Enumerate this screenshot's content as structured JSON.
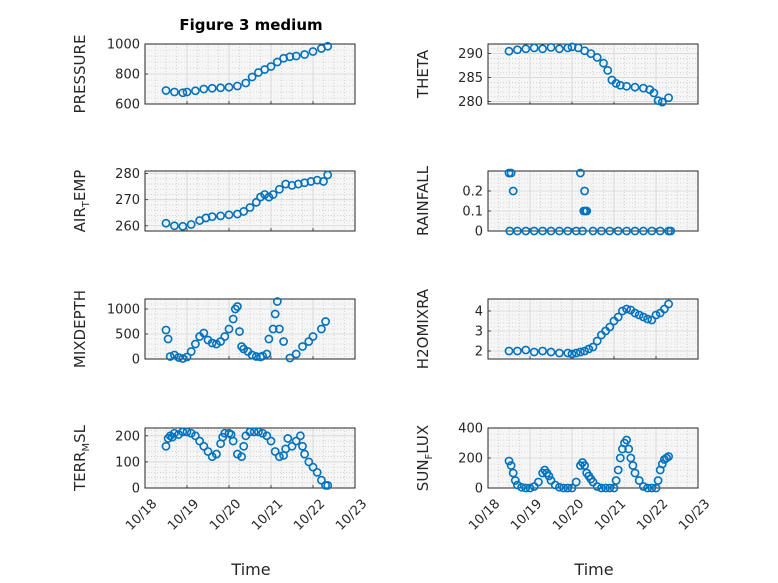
{
  "figure": {
    "title": "Figure 3 medium",
    "marker_color": "#0072bd",
    "x_range": [
      18,
      23
    ],
    "x_ticks": [
      18,
      19,
      20,
      21,
      22,
      23
    ],
    "x_tick_labels": [
      "10/18",
      "10/19",
      "10/20",
      "10/21",
      "10/22",
      "10/23"
    ],
    "x_label": "Time"
  },
  "chart_data": [
    {
      "type": "scatter",
      "name": "pressure",
      "ylabel": "PRESSURE",
      "ylim": [
        600,
        1000
      ],
      "yticks": [
        600,
        800,
        1000
      ],
      "yticklabels": [
        "600",
        "800",
        "1000"
      ],
      "x_labels": false,
      "title": "Figure 3 medium",
      "x": [
        18.5,
        18.7,
        18.9,
        19.0,
        19.2,
        19.4,
        19.6,
        19.8,
        20.0,
        20.2,
        20.4,
        20.55,
        20.7,
        20.85,
        21.0,
        21.15,
        21.3,
        21.45,
        21.6,
        21.8,
        22.0,
        22.2,
        22.35
      ],
      "y": [
        690,
        680,
        675,
        680,
        688,
        700,
        705,
        708,
        712,
        720,
        740,
        780,
        810,
        830,
        850,
        880,
        905,
        915,
        920,
        930,
        950,
        970,
        985
      ]
    },
    {
      "type": "scatter",
      "name": "theta",
      "ylabel": "THETA",
      "ylim": [
        279.5,
        292
      ],
      "yticks": [
        280,
        285,
        290
      ],
      "yticklabels": [
        "280",
        "285",
        "290"
      ],
      "x_labels": false,
      "x": [
        18.5,
        18.7,
        18.9,
        19.1,
        19.3,
        19.5,
        19.7,
        19.9,
        20.0,
        20.15,
        20.3,
        20.45,
        20.6,
        20.75,
        20.85,
        20.95,
        21.05,
        21.15,
        21.3,
        21.5,
        21.7,
        21.85,
        21.95,
        22.05,
        22.15,
        22.3
      ],
      "y": [
        290.5,
        290.8,
        291.0,
        291.2,
        291.0,
        291.3,
        291.0,
        291.2,
        291.4,
        291.2,
        290.6,
        290.0,
        289.2,
        288.0,
        286.5,
        284.5,
        283.8,
        283.4,
        283.2,
        283.0,
        282.8,
        282.5,
        281.8,
        280.2,
        279.9,
        280.8
      ]
    },
    {
      "type": "scatter",
      "name": "air_temp",
      "ylabel": "AIR",
      "ylabel_sub": "T",
      "ylabel_suffix": "EMP",
      "ylim": [
        258,
        281
      ],
      "yticks": [
        260,
        270,
        280
      ],
      "yticklabels": [
        "260",
        "270",
        "280"
      ],
      "x_labels": false,
      "x": [
        18.5,
        18.7,
        18.9,
        19.1,
        19.3,
        19.45,
        19.6,
        19.8,
        20.0,
        20.2,
        20.35,
        20.5,
        20.65,
        20.75,
        20.85,
        20.95,
        21.05,
        21.2,
        21.35,
        21.5,
        21.65,
        21.8,
        21.95,
        22.1,
        22.25,
        22.35
      ],
      "y": [
        261,
        260,
        259.8,
        260.5,
        262,
        263,
        263.5,
        263.8,
        264.2,
        264.5,
        265.5,
        267,
        269,
        271,
        272,
        271,
        272,
        274,
        276,
        275.5,
        276,
        276.5,
        277,
        277.5,
        277,
        279.5
      ]
    },
    {
      "type": "scatter",
      "name": "rainfall",
      "ylabel": "RAINFALL",
      "ylim": [
        0,
        0.3
      ],
      "yticks": [
        0,
        0.1,
        0.2
      ],
      "yticklabels": [
        "0",
        "0.1",
        "0.2"
      ],
      "x_labels": false,
      "x": [
        18.5,
        18.55,
        18.6,
        18.52,
        18.7,
        18.9,
        19.1,
        19.3,
        19.5,
        19.7,
        19.9,
        20.1,
        20.2,
        20.25,
        20.28,
        20.3,
        20.32,
        20.35,
        20.5,
        20.7,
        20.9,
        21.1,
        21.3,
        21.5,
        21.7,
        21.9,
        22.1,
        22.3,
        22.35
      ],
      "y": [
        0.29,
        0.29,
        0.2,
        0,
        0,
        0,
        0,
        0,
        0,
        0,
        0,
        0,
        0.29,
        0,
        0.1,
        0.2,
        0.1,
        0.1,
        0,
        0,
        0,
        0,
        0,
        0,
        0,
        0,
        0,
        0,
        0
      ]
    },
    {
      "type": "scatter",
      "name": "mixdepth",
      "ylabel": "MIXDEPTH",
      "ylim": [
        0,
        1200
      ],
      "yticks": [
        0,
        500,
        1000
      ],
      "yticklabels": [
        "0",
        "500",
        "1000"
      ],
      "x_labels": false,
      "x": [
        18.5,
        18.55,
        18.6,
        18.7,
        18.8,
        18.9,
        19.0,
        19.1,
        19.2,
        19.3,
        19.4,
        19.5,
        19.6,
        19.7,
        19.8,
        19.9,
        20.0,
        20.1,
        20.15,
        20.2,
        20.25,
        20.3,
        20.35,
        20.45,
        20.55,
        20.65,
        20.75,
        20.8,
        20.9,
        20.95,
        21.05,
        21.1,
        21.15,
        21.2,
        21.3,
        21.45,
        21.6,
        21.75,
        21.9,
        22.0,
        22.2,
        22.3
      ],
      "y": [
        580,
        400,
        50,
        80,
        30,
        10,
        40,
        150,
        300,
        450,
        520,
        380,
        320,
        300,
        350,
        450,
        600,
        800,
        1000,
        1050,
        550,
        250,
        200,
        150,
        80,
        50,
        40,
        60,
        100,
        400,
        600,
        900,
        1150,
        600,
        350,
        20,
        100,
        250,
        350,
        450,
        600,
        750
      ]
    },
    {
      "type": "scatter",
      "name": "h2omixra",
      "ylabel": "H2OMIXRA",
      "ylim": [
        1.6,
        4.6
      ],
      "yticks": [
        2,
        3,
        4
      ],
      "yticklabels": [
        "2",
        "3",
        "4"
      ],
      "x_labels": false,
      "x": [
        18.5,
        18.7,
        18.9,
        19.1,
        19.3,
        19.5,
        19.7,
        19.9,
        20.0,
        20.1,
        20.2,
        20.3,
        20.4,
        20.5,
        20.6,
        20.7,
        20.8,
        20.9,
        21.0,
        21.1,
        21.2,
        21.3,
        21.4,
        21.5,
        21.6,
        21.7,
        21.8,
        21.9,
        22.0,
        22.1,
        22.2,
        22.3
      ],
      "y": [
        2.0,
        2.0,
        2.05,
        1.95,
        2.0,
        1.95,
        1.9,
        1.9,
        1.85,
        1.9,
        1.95,
        2.0,
        2.1,
        2.2,
        2.5,
        2.8,
        3.0,
        3.2,
        3.5,
        3.7,
        4.0,
        4.1,
        4.05,
        3.9,
        3.8,
        3.7,
        3.6,
        3.55,
        3.8,
        3.9,
        4.1,
        4.35
      ]
    },
    {
      "type": "scatter",
      "name": "terr_msl",
      "ylabel": "TERR",
      "ylabel_sub": "M",
      "ylabel_suffix": "SL",
      "ylim": [
        0,
        230
      ],
      "yticks": [
        0,
        100,
        200
      ],
      "yticklabels": [
        "0",
        "100",
        "200"
      ],
      "x_labels": true,
      "x": [
        18.5,
        18.55,
        18.6,
        18.65,
        18.7,
        18.8,
        18.9,
        19.0,
        19.1,
        19.2,
        19.3,
        19.4,
        19.5,
        19.6,
        19.7,
        19.8,
        19.85,
        19.9,
        20.0,
        20.05,
        20.1,
        20.2,
        20.3,
        20.35,
        20.4,
        20.5,
        20.6,
        20.7,
        20.8,
        20.9,
        21.0,
        21.1,
        21.2,
        21.3,
        21.35,
        21.4,
        21.5,
        21.6,
        21.7,
        21.75,
        21.8,
        21.9,
        22.0,
        22.1,
        22.2,
        22.3,
        22.35
      ],
      "y": [
        160,
        190,
        200,
        195,
        210,
        205,
        215,
        215,
        210,
        200,
        180,
        160,
        140,
        120,
        130,
        170,
        195,
        210,
        210,
        205,
        180,
        130,
        120,
        160,
        200,
        215,
        215,
        215,
        210,
        200,
        180,
        140,
        120,
        125,
        150,
        190,
        160,
        180,
        200,
        160,
        130,
        100,
        80,
        60,
        30,
        10,
        10
      ]
    },
    {
      "type": "scatter",
      "name": "sun_flux",
      "ylabel": "SUN",
      "ylabel_sub": "F",
      "ylabel_suffix": "LUX",
      "ylim": [
        0,
        400
      ],
      "yticks": [
        0,
        200,
        400
      ],
      "yticklabels": [
        "0",
        "200",
        "400"
      ],
      "x_labels": true,
      "x": [
        18.5,
        18.55,
        18.6,
        18.65,
        18.7,
        18.8,
        18.9,
        19.0,
        19.1,
        19.2,
        19.3,
        19.35,
        19.4,
        19.45,
        19.5,
        19.6,
        19.7,
        19.8,
        19.9,
        20.0,
        20.1,
        20.2,
        20.25,
        20.3,
        20.35,
        20.4,
        20.45,
        20.5,
        20.6,
        20.7,
        20.8,
        20.9,
        21.0,
        21.05,
        21.1,
        21.15,
        21.2,
        21.25,
        21.3,
        21.35,
        21.4,
        21.45,
        21.5,
        21.6,
        21.7,
        21.8,
        21.9,
        22.0,
        22.05,
        22.1,
        22.15,
        22.2,
        22.25,
        22.3
      ],
      "y": [
        180,
        150,
        100,
        50,
        20,
        5,
        0,
        0,
        10,
        40,
        100,
        120,
        100,
        80,
        50,
        20,
        5,
        0,
        0,
        0,
        40,
        150,
        170,
        150,
        100,
        80,
        60,
        40,
        10,
        0,
        0,
        0,
        0,
        50,
        120,
        200,
        260,
        300,
        320,
        260,
        200,
        150,
        100,
        50,
        10,
        0,
        0,
        0,
        50,
        120,
        160,
        190,
        200,
        210
      ]
    }
  ]
}
